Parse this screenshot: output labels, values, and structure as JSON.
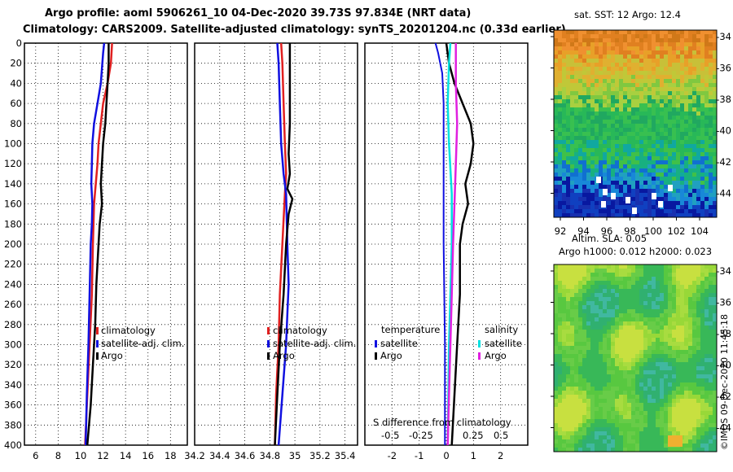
{
  "title": {
    "line1": "Argo profile: aoml 5906261_10 04-Dec-2020 39.73S 97.834E (NRT data)",
    "line2": "Climatology: CARS2009. Satellite-adjusted climatology: synTS_20201204.nc (0.33d earlier)"
  },
  "colors": {
    "climatology": "#e02020",
    "satellite_adj": "#1010e0",
    "argo": "#000000",
    "sat_temp": "#1010e0",
    "sat_sal": "#00e0e0",
    "argo_temp": "#000000",
    "argo_sal": "#e020e0"
  },
  "legend": {
    "climatology": "climatology",
    "satellite_adj": "satellite-adj. clim.",
    "argo": "Argo",
    "temperature_header": "temperature",
    "salinity_header": "salinity",
    "satellite": "satellite",
    "argo_short": "Argo",
    "diff_title": "S difference from climatology",
    "diff_ticks": [
      "-0.5",
      "-0.25",
      "0.25",
      "0.5"
    ]
  },
  "maps": {
    "sst_title": "sat. SST: 12 Argo: 12.4",
    "sla_title_1": "Altim. SLA: 0.05",
    "sla_title_2": "Argo h1000: 0.012 h2000: 0.023",
    "lat_ticks": [
      "-34",
      "-36",
      "-38",
      "-40",
      "-42",
      "-44"
    ],
    "lon_ticks": [
      "92",
      "94",
      "96",
      "98",
      "100",
      "102",
      "104"
    ]
  },
  "credit": "©IMOS 09-Dec-2020 11:45:18",
  "chart_data": [
    {
      "type": "line",
      "name": "temperature-profile",
      "xlabel": "",
      "ylabel": "",
      "xlim": [
        5,
        19.5
      ],
      "ylim": [
        400,
        0
      ],
      "xticks": [
        6,
        8,
        10,
        12,
        14,
        16,
        18
      ],
      "yticks": [
        0,
        20,
        40,
        60,
        80,
        100,
        120,
        140,
        160,
        180,
        200,
        220,
        240,
        260,
        280,
        300,
        320,
        340,
        360,
        380,
        400
      ],
      "series": [
        {
          "name": "climatology",
          "color": "#e02020",
          "width": 2.5,
          "points": [
            [
              12.8,
              0
            ],
            [
              12.7,
              20
            ],
            [
              12.4,
              40
            ],
            [
              12.0,
              60
            ],
            [
              11.8,
              80
            ],
            [
              11.6,
              100
            ],
            [
              11.5,
              120
            ],
            [
              11.35,
              140
            ],
            [
              11.2,
              160
            ],
            [
              11.1,
              200
            ],
            [
              11.0,
              250
            ],
            [
              10.8,
              300
            ],
            [
              10.6,
              350
            ],
            [
              10.4,
              400
            ]
          ]
        },
        {
          "name": "satellite-adj. clim.",
          "color": "#1010e0",
          "width": 2.5,
          "points": [
            [
              12.1,
              0
            ],
            [
              12.0,
              10
            ],
            [
              11.8,
              40
            ],
            [
              11.5,
              60
            ],
            [
              11.2,
              80
            ],
            [
              11.05,
              100
            ],
            [
              11.0,
              120
            ],
            [
              10.95,
              140
            ],
            [
              11.05,
              160
            ],
            [
              11.0,
              180
            ],
            [
              10.9,
              200
            ],
            [
              10.8,
              250
            ],
            [
              10.7,
              300
            ],
            [
              10.55,
              350
            ],
            [
              10.45,
              400
            ]
          ]
        },
        {
          "name": "Argo",
          "color": "#000000",
          "width": 2.5,
          "points": [
            [
              12.5,
              0
            ],
            [
              12.5,
              20
            ],
            [
              12.4,
              40
            ],
            [
              12.3,
              60
            ],
            [
              12.2,
              80
            ],
            [
              12.0,
              100
            ],
            [
              11.9,
              120
            ],
            [
              11.8,
              140
            ],
            [
              11.9,
              160
            ],
            [
              11.7,
              180
            ],
            [
              11.6,
              200
            ],
            [
              11.4,
              240
            ],
            [
              11.3,
              280
            ],
            [
              11.1,
              320
            ],
            [
              10.9,
              360
            ],
            [
              10.6,
              400
            ]
          ]
        }
      ]
    },
    {
      "type": "line",
      "name": "salinity-profile",
      "xlabel": "",
      "ylabel": "",
      "xlim": [
        34.2,
        35.5
      ],
      "ylim": [
        400,
        0
      ],
      "xticks": [
        34.2,
        34.4,
        34.6,
        34.8,
        35,
        35.2,
        35.4
      ],
      "xticklabels": [
        "34.2",
        "34.4",
        "34.6",
        "34.8",
        "35",
        "35.2",
        "35.4"
      ],
      "series": [
        {
          "name": "climatology",
          "color": "#e02020",
          "width": 2.5,
          "points": [
            [
              34.89,
              0
            ],
            [
              34.9,
              20
            ],
            [
              34.91,
              60
            ],
            [
              34.92,
              100
            ],
            [
              34.93,
              130
            ],
            [
              34.92,
              150
            ],
            [
              34.9,
              200
            ],
            [
              34.88,
              250
            ],
            [
              34.87,
              300
            ],
            [
              34.85,
              350
            ],
            [
              34.84,
              400
            ]
          ]
        },
        {
          "name": "satellite-adj. clim.",
          "color": "#1010e0",
          "width": 2.5,
          "points": [
            [
              34.86,
              0
            ],
            [
              34.87,
              20
            ],
            [
              34.88,
              60
            ],
            [
              34.89,
              100
            ],
            [
              34.91,
              130
            ],
            [
              34.93,
              150
            ],
            [
              34.94,
              200
            ],
            [
              34.95,
              240
            ],
            [
              34.94,
              270
            ],
            [
              34.93,
              300
            ],
            [
              34.9,
              350
            ],
            [
              34.87,
              400
            ]
          ]
        },
        {
          "name": "Argo",
          "color": "#000000",
          "width": 2.5,
          "points": [
            [
              34.96,
              0
            ],
            [
              34.96,
              40
            ],
            [
              34.96,
              80
            ],
            [
              34.95,
              110
            ],
            [
              34.96,
              130
            ],
            [
              34.94,
              145
            ],
            [
              34.98,
              155
            ],
            [
              34.95,
              170
            ],
            [
              34.93,
              200
            ],
            [
              34.91,
              250
            ],
            [
              34.88,
              300
            ],
            [
              34.86,
              350
            ],
            [
              34.84,
              400
            ]
          ]
        }
      ]
    },
    {
      "type": "line",
      "name": "difference-from-climatology",
      "xlabel": "",
      "ylabel": "",
      "xlim": [
        -3,
        3
      ],
      "ylim": [
        400,
        0
      ],
      "xticks": [
        -2,
        -1,
        0,
        1,
        2
      ],
      "series": [
        {
          "name": "temperature satellite",
          "color": "#1010e0",
          "width": 2,
          "points": [
            [
              -0.4,
              0
            ],
            [
              -0.3,
              10
            ],
            [
              -0.15,
              30
            ],
            [
              -0.1,
              60
            ],
            [
              -0.1,
              100
            ],
            [
              -0.1,
              140
            ],
            [
              -0.1,
              200
            ],
            [
              -0.05,
              300
            ],
            [
              -0.05,
              400
            ]
          ]
        },
        {
          "name": "temperature Argo",
          "color": "#000000",
          "width": 2.5,
          "points": [
            [
              0,
              0
            ],
            [
              0.1,
              20
            ],
            [
              0.3,
              40
            ],
            [
              0.6,
              60
            ],
            [
              0.9,
              80
            ],
            [
              1.0,
              100
            ],
            [
              0.9,
              120
            ],
            [
              0.7,
              140
            ],
            [
              0.8,
              160
            ],
            [
              0.6,
              180
            ],
            [
              0.5,
              200
            ],
            [
              0.5,
              250
            ],
            [
              0.4,
              300
            ],
            [
              0.3,
              350
            ],
            [
              0.2,
              400
            ]
          ]
        },
        {
          "name": "salinity satellite",
          "color": "#00e0e0",
          "width": 2.5,
          "points": [
            [
              0.15,
              0
            ],
            [
              0.1,
              20
            ],
            [
              0.05,
              60
            ],
            [
              0.1,
              100
            ],
            [
              0.2,
              150
            ],
            [
              0.2,
              200
            ],
            [
              0.1,
              300
            ],
            [
              0.05,
              400
            ]
          ]
        },
        {
          "name": "salinity Argo",
          "color": "#e020e0",
          "width": 2.5,
          "points": [
            [
              0.35,
              0
            ],
            [
              0.35,
              40
            ],
            [
              0.4,
              80
            ],
            [
              0.35,
              120
            ],
            [
              0.3,
              160
            ],
            [
              0.25,
              200
            ],
            [
              0.2,
              250
            ],
            [
              0.15,
              300
            ],
            [
              0.1,
              350
            ],
            [
              0.05,
              400
            ]
          ]
        }
      ]
    }
  ]
}
